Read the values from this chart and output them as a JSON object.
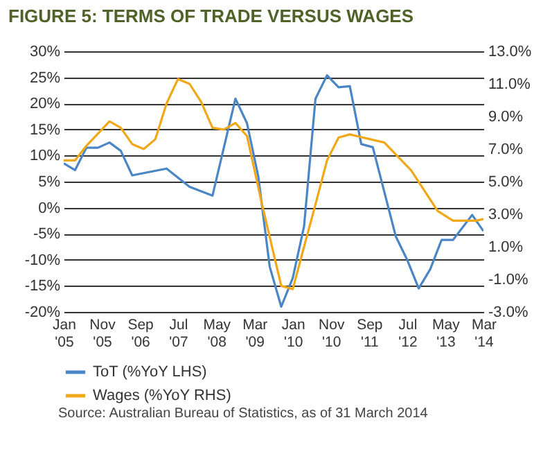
{
  "chart_data": {
    "type": "line",
    "title": "FIGURE 5: TERMS OF TRADE VERSUS WAGES",
    "annotations": [
      "Source: Australian Bureau of Statistics, as of 31 March 2014"
    ],
    "series": [
      {
        "name": "ToT (%YoY LHS)",
        "color": "#4a86c5",
        "x": [
          "2005-01",
          "2005-04",
          "2005-07",
          "2005-10",
          "2006-01",
          "2006-04",
          "2006-07",
          "2007-04",
          "2007-10",
          "2008-04",
          "2008-10",
          "2009-01",
          "2009-04",
          "2009-07",
          "2009-10",
          "2010-01",
          "2010-04",
          "2010-07",
          "2010-10",
          "2011-01",
          "2011-04",
          "2011-07",
          "2011-10",
          "2012-04",
          "2012-07",
          "2012-10",
          "2013-01",
          "2013-04",
          "2013-07",
          "2013-12",
          "2014-03"
        ],
        "values": [
          8.5,
          7.2,
          11.5,
          11.5,
          12.5,
          10.9,
          6.2,
          7.5,
          4.0,
          2.3,
          20.9,
          16.2,
          6.0,
          -11.3,
          -19,
          -13.5,
          -3.6,
          20.9,
          25.4,
          23.1,
          23.3,
          12.2,
          11.6,
          -5.5,
          -10,
          -15.5,
          -11.8,
          -6.2,
          -6.2,
          -1.4,
          -4.5
        ]
      },
      {
        "name": "Wages (%YoY RHS)",
        "color": "#f0a818",
        "axis": "y2",
        "x": [
          "2005-01",
          "2005-04",
          "2005-07",
          "2006-01",
          "2006-04",
          "2006-07",
          "2006-10",
          "2007-01",
          "2007-04",
          "2007-07",
          "2007-10",
          "2008-01",
          "2008-04",
          "2008-07",
          "2008-10",
          "2009-01",
          "2009-05",
          "2009-10",
          "2010-01",
          "2010-04",
          "2010-07",
          "2010-10",
          "2011-01",
          "2011-04",
          "2012-01",
          "2012-08",
          "2013-03",
          "2013-07",
          "2014-01",
          "2014-03"
        ],
        "values": [
          6.3,
          6.3,
          7.2,
          8.7,
          8.3,
          7.3,
          7.0,
          7.6,
          9.8,
          11.3,
          11.0,
          9.9,
          8.3,
          8.2,
          8.6,
          7.8,
          3.6,
          -1.4,
          -1.6,
          1.0,
          3.6,
          6.3,
          7.7,
          7.9,
          7.4,
          5.7,
          3.2,
          2.6,
          2.6,
          2.7
        ]
      }
    ],
    "xlim": [
      "2005-01",
      "2014-03"
    ],
    "xticks": [
      {
        "value": "2005-01",
        "label": "Jan '05"
      },
      {
        "value": "2005-11",
        "label": "Nov '05"
      },
      {
        "value": "2006-09",
        "label": "Sep '06"
      },
      {
        "value": "2007-07",
        "label": "Jul '07"
      },
      {
        "value": "2008-05",
        "label": "May '08"
      },
      {
        "value": "2009-03",
        "label": "Mar '09"
      },
      {
        "value": "2010-01",
        "label": "Jan '10"
      },
      {
        "value": "2010-11",
        "label": "Nov '10"
      },
      {
        "value": "2011-09",
        "label": "Sep '11"
      },
      {
        "value": "2012-07",
        "label": "Jul '12"
      },
      {
        "value": "2013-05",
        "label": "May '13"
      },
      {
        "value": "2014-03",
        "label": "Mar '14"
      }
    ],
    "ylim": [
      -20,
      30
    ],
    "yticks": [
      {
        "value": -20,
        "label": "-20%"
      },
      {
        "value": -15,
        "label": "-15%"
      },
      {
        "value": -10,
        "label": "-10%"
      },
      {
        "value": -5,
        "label": "-5%"
      },
      {
        "value": 0,
        "label": "0%"
      },
      {
        "value": 5,
        "label": "5%"
      },
      {
        "value": 10,
        "label": "10%"
      },
      {
        "value": 15,
        "label": "15%"
      },
      {
        "value": 20,
        "label": "20%"
      },
      {
        "value": 25,
        "label": "25%"
      },
      {
        "value": 30,
        "label": "30%"
      }
    ],
    "y2lim": [
      -3,
      13
    ],
    "y2ticks": [
      {
        "value": -3,
        "label": "-3.0%"
      },
      {
        "value": -1,
        "label": "-1.0%"
      },
      {
        "value": 1,
        "label": "1.0%"
      },
      {
        "value": 3,
        "label": "3.0%"
      },
      {
        "value": 5,
        "label": "5.0%"
      },
      {
        "value": 7,
        "label": "7.0%"
      },
      {
        "value": 9,
        "label": "9.0%"
      },
      {
        "value": 11,
        "label": "11.0%"
      },
      {
        "value": 13,
        "label": "13.0%"
      }
    ],
    "grid": "y",
    "legend": "bottom"
  }
}
